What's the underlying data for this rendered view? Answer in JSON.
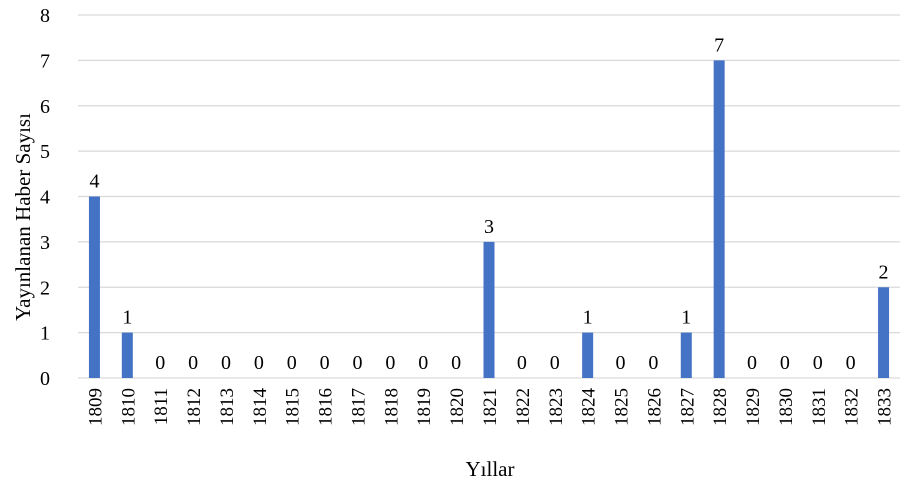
{
  "chart_data": {
    "type": "bar",
    "title": "",
    "xlabel": "Yıllar",
    "ylabel": "Yayınlanan Haber Sayısı",
    "ylim": [
      0,
      8
    ],
    "yticks": [
      0,
      1,
      2,
      3,
      4,
      5,
      6,
      7,
      8
    ],
    "grid": true,
    "categories": [
      "1809",
      "1810",
      "1811",
      "1812",
      "1813",
      "1814",
      "1815",
      "1816",
      "1817",
      "1818",
      "1819",
      "1820",
      "1821",
      "1822",
      "1823",
      "1824",
      "1825",
      "1826",
      "1827",
      "1828",
      "1829",
      "1830",
      "1831",
      "1832",
      "1833"
    ],
    "values": [
      4,
      1,
      0,
      0,
      0,
      0,
      0,
      0,
      0,
      0,
      0,
      0,
      3,
      0,
      0,
      1,
      0,
      0,
      1,
      7,
      0,
      0,
      0,
      0,
      2
    ],
    "bar_color": "#4472C4",
    "grid_color": "#D9D9D9"
  }
}
